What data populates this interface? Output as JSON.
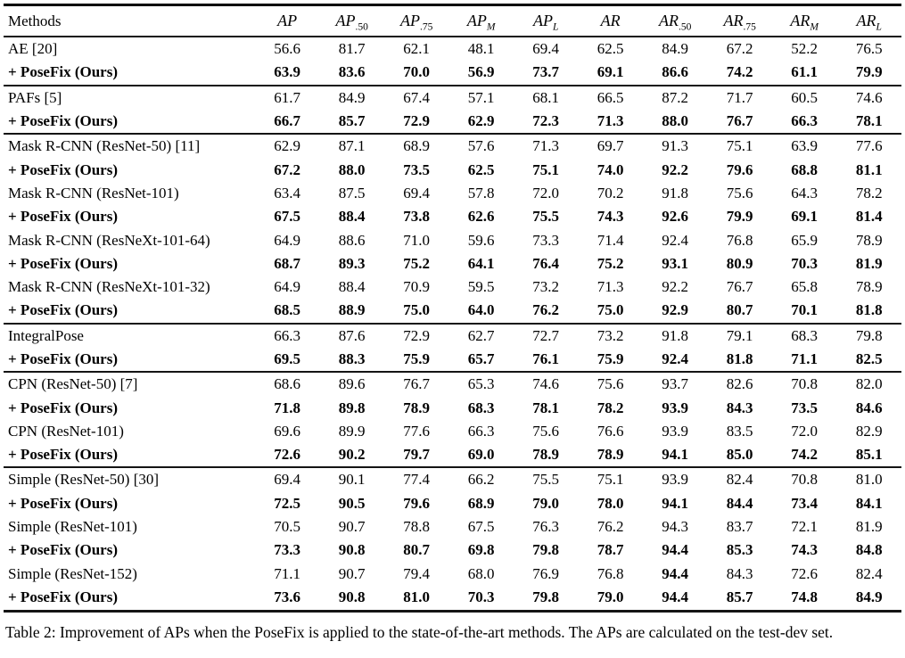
{
  "colors": {
    "background": "#ffffff",
    "text": "#000000",
    "rule": "#141414"
  },
  "table": {
    "method_col_header": "Methods",
    "metric_headers": [
      {
        "base": "AP",
        "sub": "",
        "sub_italic": false
      },
      {
        "base": "AP",
        "sub": ".50",
        "sub_italic": false
      },
      {
        "base": "AP",
        "sub": ".75",
        "sub_italic": false
      },
      {
        "base": "AP",
        "sub": "M",
        "sub_italic": true
      },
      {
        "base": "AP",
        "sub": "L",
        "sub_italic": true
      },
      {
        "base": "AR",
        "sub": "",
        "sub_italic": false
      },
      {
        "base": "AR",
        "sub": ".50",
        "sub_italic": false
      },
      {
        "base": "AR",
        "sub": ".75",
        "sub_italic": false
      },
      {
        "base": "AR",
        "sub": "M",
        "sub_italic": true
      },
      {
        "base": "AR",
        "sub": "L",
        "sub_italic": true
      }
    ],
    "rows": [
      {
        "method": "AE [20]",
        "bold": false,
        "group_start": false,
        "bold_cells": [],
        "values": [
          "56.6",
          "81.7",
          "62.1",
          "48.1",
          "69.4",
          "62.5",
          "84.9",
          "67.2",
          "52.2",
          "76.5"
        ]
      },
      {
        "method": "+ PoseFix (Ours)",
        "bold": true,
        "group_start": false,
        "bold_cells": [],
        "values": [
          "63.9",
          "83.6",
          "70.0",
          "56.9",
          "73.7",
          "69.1",
          "86.6",
          "74.2",
          "61.1",
          "79.9"
        ]
      },
      {
        "method": "PAFs [5]",
        "bold": false,
        "group_start": true,
        "bold_cells": [],
        "values": [
          "61.7",
          "84.9",
          "67.4",
          "57.1",
          "68.1",
          "66.5",
          "87.2",
          "71.7",
          "60.5",
          "74.6"
        ]
      },
      {
        "method": "+ PoseFix (Ours)",
        "bold": true,
        "group_start": false,
        "bold_cells": [],
        "values": [
          "66.7",
          "85.7",
          "72.9",
          "62.9",
          "72.3",
          "71.3",
          "88.0",
          "76.7",
          "66.3",
          "78.1"
        ]
      },
      {
        "method": "Mask R-CNN (ResNet-50) [11]",
        "bold": false,
        "group_start": true,
        "bold_cells": [],
        "values": [
          "62.9",
          "87.1",
          "68.9",
          "57.6",
          "71.3",
          "69.7",
          "91.3",
          "75.1",
          "63.9",
          "77.6"
        ]
      },
      {
        "method": "+ PoseFix (Ours)",
        "bold": true,
        "group_start": false,
        "bold_cells": [],
        "values": [
          "67.2",
          "88.0",
          "73.5",
          "62.5",
          "75.1",
          "74.0",
          "92.2",
          "79.6",
          "68.8",
          "81.1"
        ]
      },
      {
        "method": "Mask R-CNN (ResNet-101)",
        "bold": false,
        "group_start": false,
        "bold_cells": [],
        "values": [
          "63.4",
          "87.5",
          "69.4",
          "57.8",
          "72.0",
          "70.2",
          "91.8",
          "75.6",
          "64.3",
          "78.2"
        ]
      },
      {
        "method": "+ PoseFix (Ours)",
        "bold": true,
        "group_start": false,
        "bold_cells": [],
        "values": [
          "67.5",
          "88.4",
          "73.8",
          "62.6",
          "75.5",
          "74.3",
          "92.6",
          "79.9",
          "69.1",
          "81.4"
        ]
      },
      {
        "method": "Mask R-CNN (ResNeXt-101-64)",
        "bold": false,
        "group_start": false,
        "bold_cells": [],
        "values": [
          "64.9",
          "88.6",
          "71.0",
          "59.6",
          "73.3",
          "71.4",
          "92.4",
          "76.8",
          "65.9",
          "78.9"
        ]
      },
      {
        "method": "+ PoseFix (Ours)",
        "bold": true,
        "group_start": false,
        "bold_cells": [],
        "values": [
          "68.7",
          "89.3",
          "75.2",
          "64.1",
          "76.4",
          "75.2",
          "93.1",
          "80.9",
          "70.3",
          "81.9"
        ]
      },
      {
        "method": "Mask R-CNN (ResNeXt-101-32)",
        "bold": false,
        "group_start": false,
        "bold_cells": [],
        "values": [
          "64.9",
          "88.4",
          "70.9",
          "59.5",
          "73.2",
          "71.3",
          "92.2",
          "76.7",
          "65.8",
          "78.9"
        ]
      },
      {
        "method": "+ PoseFix (Ours)",
        "bold": true,
        "group_start": false,
        "bold_cells": [],
        "values": [
          "68.5",
          "88.9",
          "75.0",
          "64.0",
          "76.2",
          "75.0",
          "92.9",
          "80.7",
          "70.1",
          "81.8"
        ]
      },
      {
        "method": "IntegralPose",
        "bold": false,
        "group_start": true,
        "bold_cells": [],
        "values": [
          "66.3",
          "87.6",
          "72.9",
          "62.7",
          "72.7",
          "73.2",
          "91.8",
          "79.1",
          "68.3",
          "79.8"
        ]
      },
      {
        "method": "+ PoseFix (Ours)",
        "bold": true,
        "group_start": false,
        "bold_cells": [],
        "values": [
          "69.5",
          "88.3",
          "75.9",
          "65.7",
          "76.1",
          "75.9",
          "92.4",
          "81.8",
          "71.1",
          "82.5"
        ]
      },
      {
        "method": "CPN (ResNet-50) [7]",
        "bold": false,
        "group_start": true,
        "bold_cells": [],
        "values": [
          "68.6",
          "89.6",
          "76.7",
          "65.3",
          "74.6",
          "75.6",
          "93.7",
          "82.6",
          "70.8",
          "82.0"
        ]
      },
      {
        "method": "+ PoseFix (Ours)",
        "bold": true,
        "group_start": false,
        "bold_cells": [],
        "values": [
          "71.8",
          "89.8",
          "78.9",
          "68.3",
          "78.1",
          "78.2",
          "93.9",
          "84.3",
          "73.5",
          "84.6"
        ]
      },
      {
        "method": "CPN (ResNet-101)",
        "bold": false,
        "group_start": false,
        "bold_cells": [],
        "values": [
          "69.6",
          "89.9",
          "77.6",
          "66.3",
          "75.6",
          "76.6",
          "93.9",
          "83.5",
          "72.0",
          "82.9"
        ]
      },
      {
        "method": "+ PoseFix (Ours)",
        "bold": true,
        "group_start": false,
        "bold_cells": [],
        "values": [
          "72.6",
          "90.2",
          "79.7",
          "69.0",
          "78.9",
          "78.9",
          "94.1",
          "85.0",
          "74.2",
          "85.1"
        ]
      },
      {
        "method": "Simple (ResNet-50) [30]",
        "bold": false,
        "group_start": true,
        "bold_cells": [],
        "values": [
          "69.4",
          "90.1",
          "77.4",
          "66.2",
          "75.5",
          "75.1",
          "93.9",
          "82.4",
          "70.8",
          "81.0"
        ]
      },
      {
        "method": "+ PoseFix (Ours)",
        "bold": true,
        "group_start": false,
        "bold_cells": [],
        "values": [
          "72.5",
          "90.5",
          "79.6",
          "68.9",
          "79.0",
          "78.0",
          "94.1",
          "84.4",
          "73.4",
          "84.1"
        ]
      },
      {
        "method": "Simple (ResNet-101)",
        "bold": false,
        "group_start": false,
        "bold_cells": [],
        "values": [
          "70.5",
          "90.7",
          "78.8",
          "67.5",
          "76.3",
          "76.2",
          "94.3",
          "83.7",
          "72.1",
          "81.9"
        ]
      },
      {
        "method": "+ PoseFix (Ours)",
        "bold": true,
        "group_start": false,
        "bold_cells": [],
        "values": [
          "73.3",
          "90.8",
          "80.7",
          "69.8",
          "79.8",
          "78.7",
          "94.4",
          "85.3",
          "74.3",
          "84.8"
        ]
      },
      {
        "method": "Simple (ResNet-152)",
        "bold": false,
        "group_start": false,
        "bold_cells": [
          6
        ],
        "values": [
          "71.1",
          "90.7",
          "79.4",
          "68.0",
          "76.9",
          "76.8",
          "94.4",
          "84.3",
          "72.6",
          "82.4"
        ]
      },
      {
        "method": "+ PoseFix (Ours)",
        "bold": true,
        "group_start": false,
        "bold_cells": [],
        "values": [
          "73.6",
          "90.8",
          "81.0",
          "70.3",
          "79.8",
          "79.0",
          "94.4",
          "85.7",
          "74.8",
          "84.9"
        ]
      }
    ]
  },
  "caption": {
    "text": "Table 2: Improvement of APs when the PoseFix is applied to the state-of-the-art methods. The APs are calculated on the test-dev set."
  }
}
